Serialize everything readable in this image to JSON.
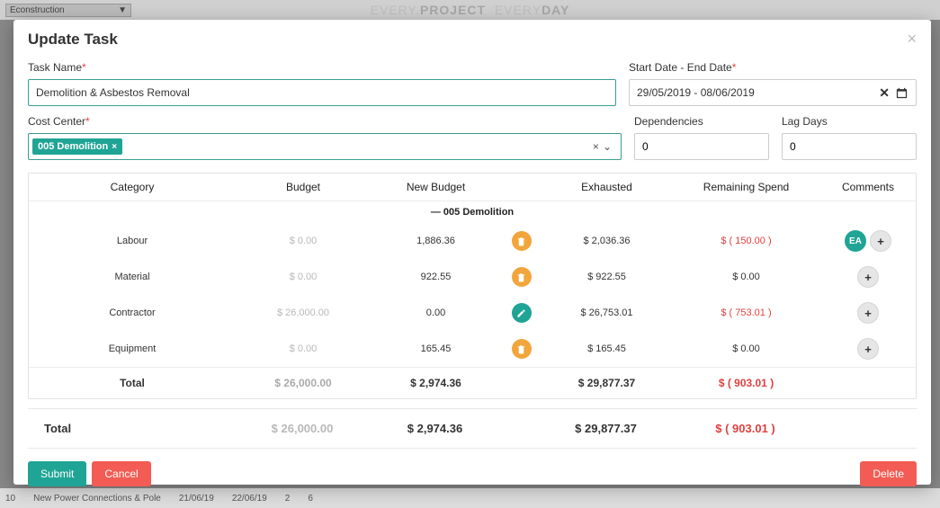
{
  "background": {
    "dropdown": "Econstruction",
    "brand": "EVERY.PROJECT  EVERYDAY",
    "bottom_row": {
      "num": "10",
      "name": "New Power Connections & Pole",
      "d1": "21/06/19",
      "d2": "22/06/19",
      "v1": "2",
      "v2": "6"
    }
  },
  "modal": {
    "title": "Update Task",
    "labels": {
      "task_name": "Task Name",
      "dates": "Start Date - End Date",
      "cost_center": "Cost Center",
      "dependencies": "Dependencies",
      "lag_days": "Lag Days"
    },
    "values": {
      "task_name": "Demolition & Asbestos Removal",
      "dates": "29/05/2019 - 08/06/2019",
      "cost_center_tag": "005 Demolition",
      "dependencies": "0",
      "lag_days": "0"
    },
    "columns": {
      "category": "Category",
      "budget": "Budget",
      "new_budget": "New Budget",
      "exhausted": "Exhausted",
      "remaining": "Remaining Spend",
      "comments": "Comments"
    },
    "group_label": "005 Demolition",
    "rows": [
      {
        "category": "Labour",
        "budget": "$ 0.00",
        "new_budget": "1,886.36",
        "icon": "trash-amber",
        "exhausted": "$ 2,036.36",
        "remaining": "$ ( 150.00 )",
        "rem_neg": true,
        "avatar": "EA"
      },
      {
        "category": "Material",
        "budget": "$ 0.00",
        "new_budget": "922.55",
        "icon": "trash-amber",
        "exhausted": "$ 922.55",
        "remaining": "$ 0.00",
        "rem_neg": false,
        "avatar": ""
      },
      {
        "category": "Contractor",
        "budget": "$ 26,000.00",
        "new_budget": "0.00",
        "icon": "edit-teal",
        "exhausted": "$ 26,753.01",
        "remaining": "$ ( 753.01 )",
        "rem_neg": true,
        "avatar": ""
      },
      {
        "category": "Equipment",
        "budget": "$ 0.00",
        "new_budget": "165.45",
        "icon": "trash-amber",
        "exhausted": "$ 165.45",
        "remaining": "$ 0.00",
        "rem_neg": false,
        "avatar": ""
      }
    ],
    "subtotal": {
      "category": "Total",
      "budget": "$ 26,000.00",
      "new_budget": "$ 2,974.36",
      "exhausted": "$ 29,877.37",
      "remaining": "$ ( 903.01 )"
    },
    "grand_total": {
      "label": "Total",
      "budget": "$ 26,000.00",
      "new_budget": "$ 2,974.36",
      "exhausted": "$ 29,877.37",
      "remaining": "$ ( 903.01 )"
    },
    "buttons": {
      "submit": "Submit",
      "cancel": "Cancel",
      "delete": "Delete"
    }
  },
  "colors": {
    "teal": "#1fa495",
    "amber": "#f2a53a",
    "red": "#f25c54",
    "neg": "#e04040"
  }
}
